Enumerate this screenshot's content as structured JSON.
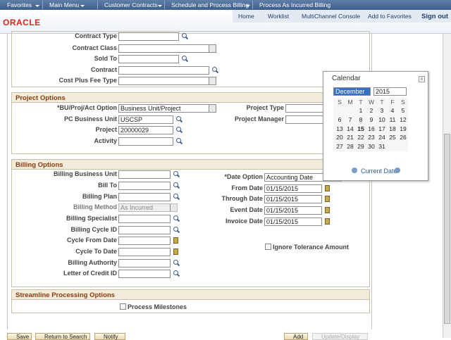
{
  "nav": {
    "breadcrumbs": [
      "Favorites",
      "Main Menu",
      "Customer Contracts",
      "Schedule and Process Billing",
      "Process As Incurred Billing"
    ]
  },
  "header": {
    "logo": "ORACLE",
    "links": [
      "Home",
      "Worklist",
      "MultiChannel Console",
      "Add to Favorites",
      "Sign out"
    ]
  },
  "contract_fields": [
    {
      "label": "Contract Type"
    },
    {
      "label": "Contract Class"
    },
    {
      "label": "Sold To"
    },
    {
      "label": "Contract"
    },
    {
      "label": "Cost Plus Fee Type"
    }
  ],
  "project_options": {
    "title": "Project Options",
    "left": [
      {
        "label": "*BU/Proj/Act Option",
        "value": "Business Unit/Project"
      },
      {
        "label": "PC Business Unit",
        "value": "USCSP"
      },
      {
        "label": "Project",
        "value": "20000029"
      },
      {
        "label": "Activity"
      }
    ],
    "right": [
      {
        "label": "Project Type"
      },
      {
        "label": "Project Manager"
      }
    ]
  },
  "billing_options": {
    "title": "Billing Options",
    "left": [
      {
        "label": "Billing Business Unit"
      },
      {
        "label": "Bill To"
      },
      {
        "label": "Billing Plan"
      },
      {
        "label": "Billing Method",
        "value": "As Incurred"
      },
      {
        "label": "Billing Specialist"
      },
      {
        "label": "Billing Cycle ID"
      },
      {
        "label": "Cycle From Date"
      },
      {
        "label": "Cycle To Date"
      },
      {
        "label": "Billing Authority"
      },
      {
        "label": "Letter of Credit ID"
      }
    ],
    "right": [
      {
        "label": "*Date Option",
        "value": "Accounting Date"
      },
      {
        "label": "From Date",
        "value": "01/15/2015"
      },
      {
        "label": "Through Date",
        "value": "01/15/2015"
      },
      {
        "label": "Event Date",
        "value": "01/15/2015"
      },
      {
        "label": "Invoice Date",
        "value": "01/15/2015"
      }
    ],
    "checkbox": "Ignore Tolerance Amount"
  },
  "streamline": {
    "title": "Streamline Processing Options",
    "checkbox": "Process Milestones"
  },
  "buttons": [
    "Save",
    "Return to Search",
    "Notify",
    "Add",
    "Update/Display"
  ],
  "calendar": {
    "title": "Calendar",
    "month": "December",
    "year": 2015,
    "weekdays": [
      "S",
      "M",
      "T",
      "W",
      "T",
      "F",
      "S"
    ],
    "days": [
      1,
      2,
      3,
      4,
      5,
      6,
      7,
      8,
      9,
      10,
      11,
      12,
      13,
      14,
      15,
      16,
      17,
      18,
      19,
      20,
      21,
      22,
      23,
      24,
      25,
      26,
      27,
      28,
      29,
      30,
      31
    ],
    "bold_day": 15,
    "footer": "Current Date"
  }
}
